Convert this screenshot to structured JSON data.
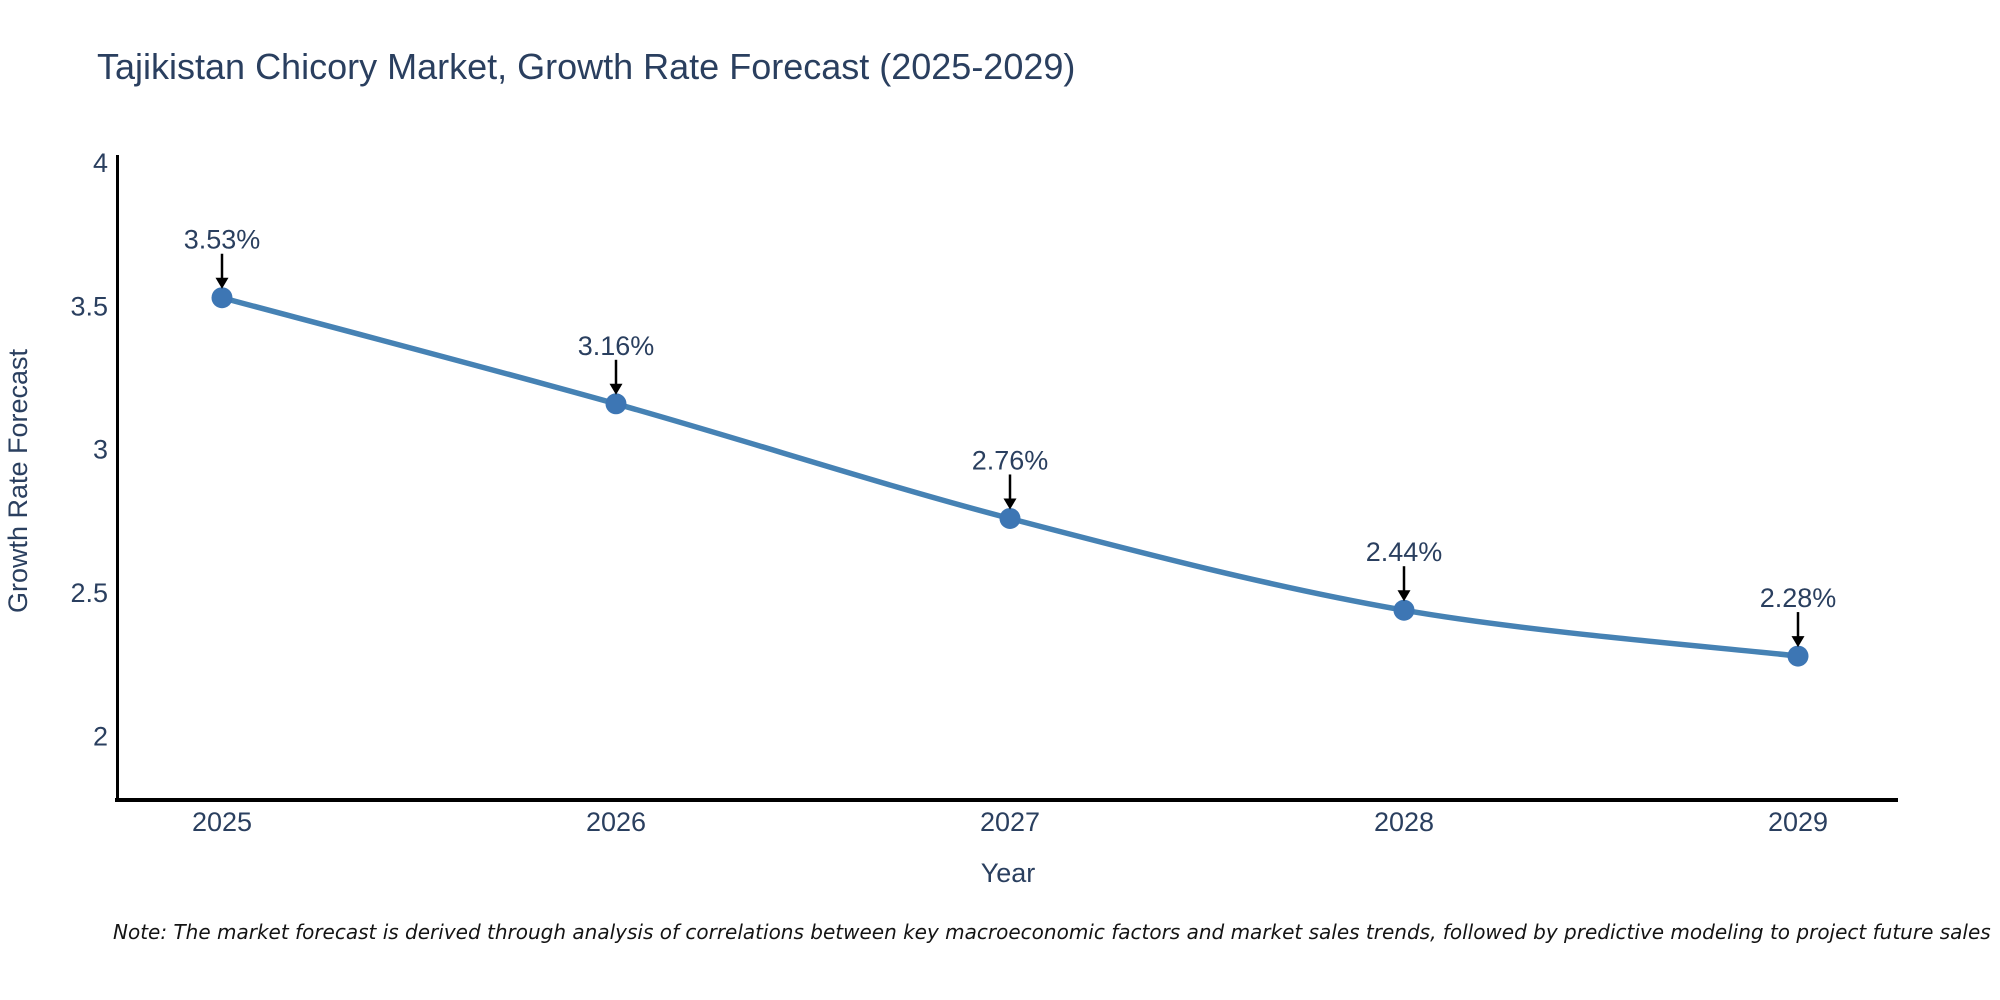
{
  "title": "Tajikistan Chicory Market, Growth Rate Forecast (2025-2029)",
  "note": "Note: The market forecast is derived through analysis of correlations between key macroeconomic factors and market sales trends, followed by predictive modeling to project future sales",
  "colors": {
    "text": "#2a3f5f",
    "axis_line": "#000000",
    "series_line": "#4682b4",
    "marker_fill": "#3d76b4",
    "arrow": "#000000",
    "note_text": "#141414",
    "background": "#ffffff"
  },
  "chart_data": {
    "type": "line",
    "title": "Tajikistan Chicory Market, Growth Rate Forecast (2025-2029)",
    "xlabel": "Year",
    "ylabel": "Growth Rate Forecast",
    "x": [
      2025,
      2026,
      2027,
      2028,
      2029
    ],
    "values": [
      3.53,
      3.16,
      2.76,
      2.44,
      2.28
    ],
    "point_labels": [
      "3.53%",
      "3.16%",
      "2.76%",
      "2.44%",
      "2.28%"
    ],
    "x_ticks": [
      "2025",
      "2026",
      "2027",
      "2028",
      "2029"
    ],
    "y_ticks": [
      "4",
      "3.5",
      "3",
      "2.5",
      "2"
    ],
    "y_tick_values": [
      4,
      3.5,
      3,
      2.5,
      2
    ],
    "ylim": [
      1.78,
      4.03
    ],
    "grid": false,
    "legend_position": "none",
    "line_shape": "spline",
    "markers": true,
    "annotation_arrows": true
  }
}
